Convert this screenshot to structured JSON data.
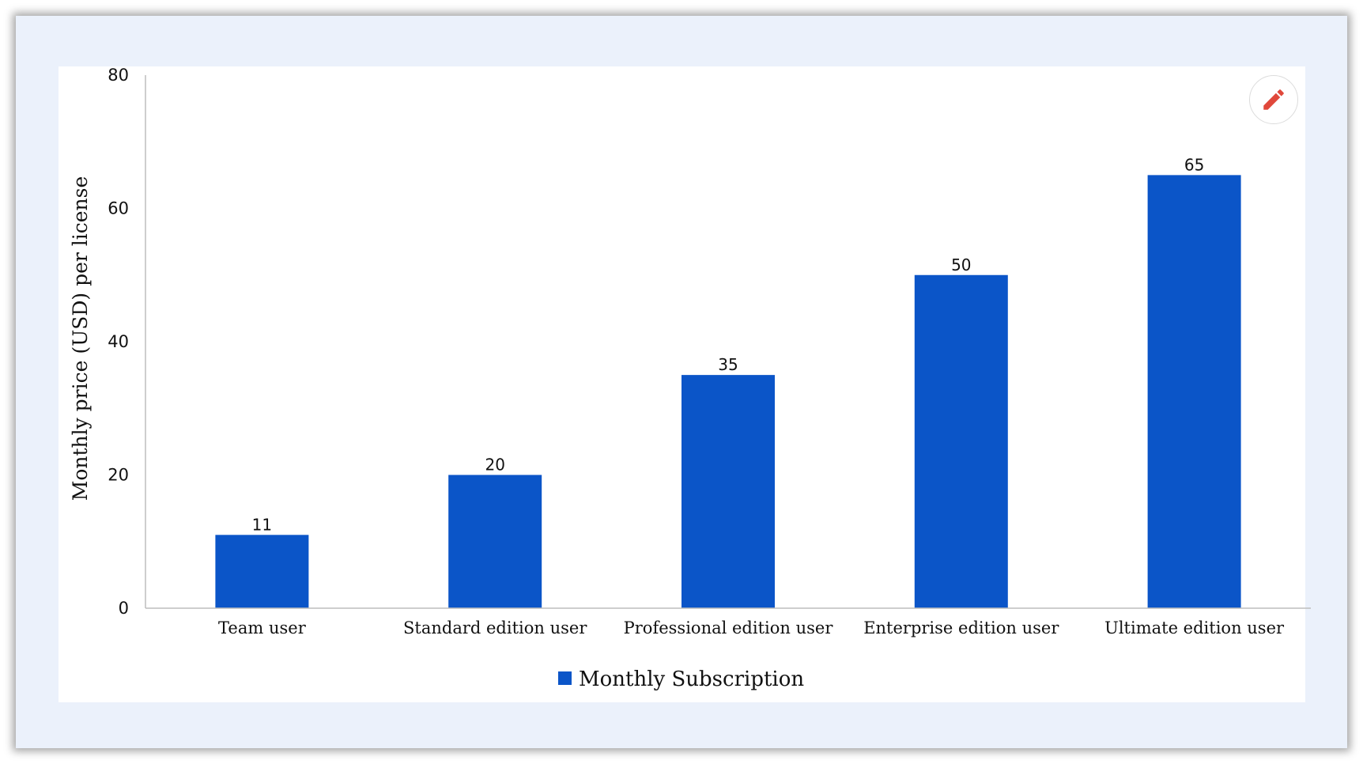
{
  "chart_data": {
    "type": "bar",
    "categories": [
      "Team user",
      "Standard  edition user",
      "Professional  edition user",
      "Enterprise  edition user",
      "Ultimate  edition user"
    ],
    "series": [
      {
        "name": "Monthly Subscription",
        "values": [
          11,
          20,
          35,
          50,
          65
        ]
      }
    ],
    "title": "",
    "xlabel": "",
    "ylabel": "Monthly price (USD) per license",
    "ylim": [
      0,
      80
    ],
    "yticks": [
      0,
      20,
      40,
      60,
      80
    ],
    "grid": false,
    "legend_position": "bottom",
    "bar_color": "#0b55c8",
    "data_labels": true
  },
  "toolbar": {
    "edit_icon": "pencil-icon",
    "edit_color": "#e0483b"
  }
}
